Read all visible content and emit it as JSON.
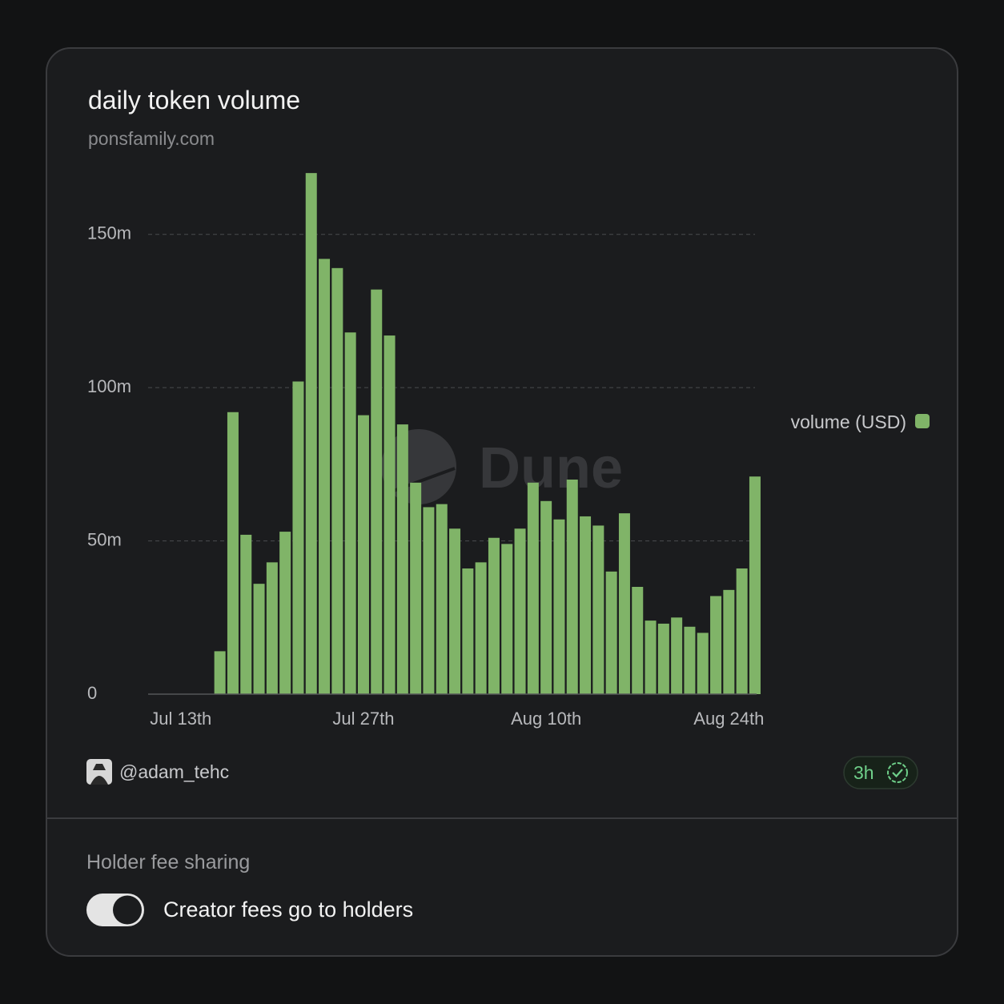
{
  "chart_data": {
    "type": "bar",
    "title": "daily token volume",
    "subtitle": "ponsfamily.com",
    "categories": [
      null,
      null,
      "Jul 13th",
      null,
      null,
      null,
      null,
      null,
      null,
      null,
      null,
      null,
      null,
      null,
      null,
      null,
      "Jul 27th",
      null,
      null,
      null,
      null,
      null,
      null,
      null,
      null,
      null,
      null,
      null,
      null,
      null,
      "Aug 10th",
      null,
      null,
      null,
      null,
      null,
      null,
      null,
      null,
      null,
      null,
      null,
      null,
      null,
      "Aug 24th",
      null,
      null
    ],
    "series": [
      {
        "name": "volume (USD)",
        "color": "#80b468",
        "values": [
          0,
          0,
          0,
          0,
          0,
          14,
          92,
          52,
          36,
          43,
          53,
          102,
          170,
          142,
          139,
          118,
          91,
          132,
          117,
          88,
          69,
          61,
          62,
          54,
          41,
          43,
          51,
          49,
          54,
          69,
          63,
          57,
          70,
          58,
          55,
          40,
          59,
          35,
          24,
          23,
          25,
          22,
          20,
          32,
          34,
          41,
          71
        ]
      }
    ],
    "ylim": [
      0,
      175
    ],
    "yticks": [
      0,
      {
        "value": 50,
        "label": "50m"
      },
      {
        "value": 100,
        "label": "100m"
      },
      {
        "value": 150,
        "label": "150m"
      }
    ],
    "grid": true,
    "legend": "right",
    "watermark": "Dune"
  },
  "footer": {
    "author": "@adam_tehc",
    "badge": "3h"
  },
  "settings": {
    "heading": "Holder fee sharing",
    "toggle_label": "Creator fees go to holders",
    "toggle_on": true
  }
}
